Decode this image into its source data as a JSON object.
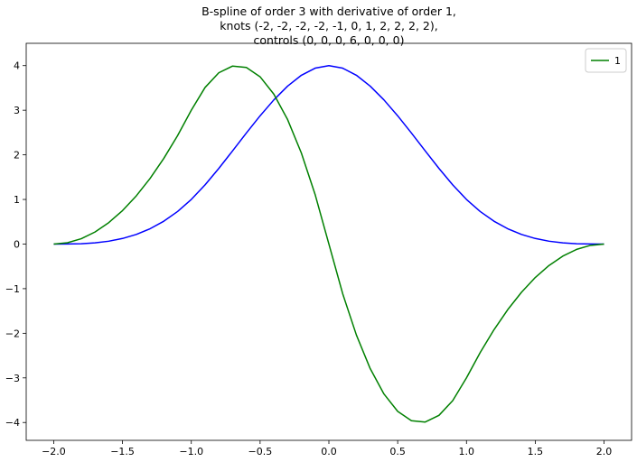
{
  "chart_data": {
    "type": "line",
    "title": [
      "B-spline of order 3 with derivative of order 1,",
      "knots (-2, -2, -2, -2, -1, 0, 1, 2, 2, 2, 2),",
      "controls (0, 0, 0, 6, 0, 0, 0)"
    ],
    "x": [
      -2.0,
      -1.9,
      -1.8,
      -1.7,
      -1.6,
      -1.5,
      -1.4,
      -1.3,
      -1.2,
      -1.1,
      -1.0,
      -0.9,
      -0.8,
      -0.7,
      -0.6,
      -0.5,
      -0.4,
      -0.3,
      -0.2,
      -0.1,
      0.0,
      0.1,
      0.2,
      0.3,
      0.4,
      0.5,
      0.6,
      0.7,
      0.8,
      0.9,
      1.0,
      1.1,
      1.2,
      1.3,
      1.4,
      1.5,
      1.6,
      1.7,
      1.8,
      1.9,
      2.0
    ],
    "series": [
      {
        "color": "#0000ff",
        "values": [
          0,
          0.001,
          0.008,
          0.027,
          0.064,
          0.125,
          0.216,
          0.343,
          0.512,
          0.729,
          1,
          1.327,
          1.696,
          2.089,
          2.488,
          2.875,
          3.232,
          3.541,
          3.784,
          3.943,
          4,
          3.943,
          3.784,
          3.541,
          3.232,
          2.875,
          2.488,
          2.089,
          1.696,
          1.327,
          1,
          0.729,
          0.512,
          0.343,
          0.216,
          0.125,
          0.064,
          0.027,
          0.008,
          0.001,
          0
        ]
      },
      {
        "name": "1",
        "color": "#008000",
        "values": [
          0,
          0.03,
          0.12,
          0.27,
          0.48,
          0.75,
          1.08,
          1.47,
          1.92,
          2.43,
          3,
          3.51,
          3.84,
          3.99,
          3.96,
          3.75,
          3.36,
          2.79,
          2.04,
          1.11,
          0,
          -1.11,
          -2.04,
          -2.79,
          -3.36,
          -3.75,
          -3.96,
          -3.99,
          -3.84,
          -3.51,
          -3,
          -2.43,
          -1.92,
          -1.47,
          -1.08,
          -0.75,
          -0.48,
          -0.27,
          -0.12,
          -0.03,
          0
        ]
      }
    ],
    "xlim": [
      -2.2,
      2.2
    ],
    "ylim": [
      -4.4,
      4.5
    ],
    "xticks": [
      {
        "value": -2,
        "label": "−2.0"
      },
      {
        "value": -1.5,
        "label": "−1.5"
      },
      {
        "value": -1,
        "label": "−1.0"
      },
      {
        "value": -0.5,
        "label": "−0.5"
      },
      {
        "value": 0,
        "label": "0.0"
      },
      {
        "value": 0.5,
        "label": "0.5"
      },
      {
        "value": 1,
        "label": "1.0"
      },
      {
        "value": 1.5,
        "label": "1.5"
      },
      {
        "value": 2,
        "label": "2.0"
      }
    ],
    "yticks": [
      {
        "value": -4,
        "label": "−4"
      },
      {
        "value": -3,
        "label": "−3"
      },
      {
        "value": -2,
        "label": "−2"
      },
      {
        "value": -1,
        "label": "−1"
      },
      0,
      1,
      2,
      3,
      4
    ],
    "legend": "upper right"
  }
}
